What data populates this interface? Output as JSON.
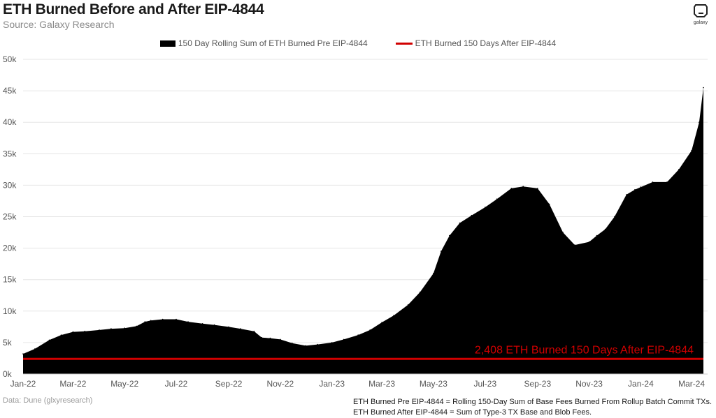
{
  "header": {
    "title": "ETH Burned Before and After EIP-4844",
    "subtitle": "Source: Galaxy Research",
    "logo_text": "galaxy"
  },
  "footer": {
    "data_source": "Data: Dune (glxyresearch)",
    "note_1": "ETH Burned Pre EIP-4844 = Rolling 150-Day Sum of Base Fees Burned From Rollup Batch Commit TXs.",
    "note_2": "ETH Burned After EIP-4844 = Sum of Type-3 TX Base and Blob Fees."
  },
  "colors": {
    "area": "#000000",
    "line": "#d10000",
    "grid": "#e6e6e6",
    "axis_text": "#555555"
  },
  "chart_data": {
    "type": "area",
    "title": "ETH Burned Before and After EIP-4844",
    "subtitle": "Source: Galaxy Research",
    "legend": {
      "placement": "top-center"
    },
    "grid": true,
    "ylim": [
      0,
      50000
    ],
    "y_ticks": [
      0,
      5000,
      10000,
      15000,
      20000,
      25000,
      30000,
      35000,
      40000,
      45000,
      50000
    ],
    "y_tick_labels": [
      "0k",
      "5k",
      "10k",
      "15k",
      "20k",
      "25k",
      "30k",
      "35k",
      "40k",
      "45k",
      "50k"
    ],
    "x_tick_labels": [
      "Jan-22",
      "Mar-22",
      "May-22",
      "Jul-22",
      "Sep-22",
      "Nov-22",
      "Jan-23",
      "Mar-23",
      "May-23",
      "Jul-23",
      "Sep-23",
      "Nov-23",
      "Jan-24",
      "Mar-24"
    ],
    "series": [
      {
        "name": "150 Day Rolling Sum of ETH Burned Pre EIP-4844",
        "kind": "area",
        "x": [
          "2022-01-01",
          "2022-01-15",
          "2022-02-01",
          "2022-02-15",
          "2022-03-01",
          "2022-03-15",
          "2022-04-01",
          "2022-04-15",
          "2022-05-01",
          "2022-05-15",
          "2022-05-25",
          "2022-06-01",
          "2022-06-15",
          "2022-07-01",
          "2022-07-15",
          "2022-08-01",
          "2022-08-15",
          "2022-09-01",
          "2022-09-15",
          "2022-10-01",
          "2022-10-10",
          "2022-10-20",
          "2022-11-01",
          "2022-11-15",
          "2022-12-01",
          "2022-12-15",
          "2023-01-01",
          "2023-01-15",
          "2023-02-01",
          "2023-02-15",
          "2023-03-01",
          "2023-03-15",
          "2023-04-01",
          "2023-04-15",
          "2023-05-01",
          "2023-05-10",
          "2023-05-20",
          "2023-06-01",
          "2023-06-15",
          "2023-07-01",
          "2023-07-15",
          "2023-08-01",
          "2023-08-15",
          "2023-09-01",
          "2023-09-15",
          "2023-10-01",
          "2023-10-15",
          "2023-11-01",
          "2023-11-10",
          "2023-11-20",
          "2023-12-01",
          "2023-12-15",
          "2023-12-25",
          "2024-01-01",
          "2024-01-15",
          "2024-02-01",
          "2024-02-15",
          "2024-03-01",
          "2024-03-10",
          "2024-03-15"
        ],
        "values": [
          3200,
          4000,
          5400,
          6200,
          6700,
          6800,
          7000,
          7200,
          7300,
          7600,
          8300,
          8500,
          8700,
          8700,
          8300,
          8000,
          7800,
          7500,
          7200,
          6800,
          5800,
          5700,
          5500,
          4900,
          4500,
          4700,
          5000,
          5500,
          6200,
          7000,
          8200,
          9300,
          11000,
          13000,
          16000,
          19500,
          22000,
          24000,
          25200,
          26500,
          27800,
          29500,
          29800,
          29500,
          27000,
          22500,
          20500,
          21000,
          22000,
          23000,
          25000,
          28500,
          29300,
          29700,
          30500,
          30500,
          32500,
          35500,
          40000,
          45500
        ]
      },
      {
        "name": "ETH Burned 150 Days After EIP-4844",
        "kind": "line",
        "value": 2408,
        "annotation": "2,408 ETH Burned 150 Days After EIP-4844"
      }
    ]
  }
}
